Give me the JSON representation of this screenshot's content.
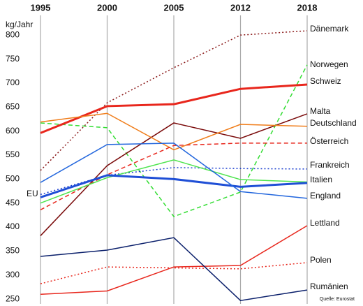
{
  "chart_data": {
    "type": "line",
    "y_label": "kg/Jahr",
    "source": "Quelle: Eurostat",
    "categories": [
      "1995",
      "2000",
      "2005",
      "2012",
      "2018"
    ],
    "ylim": [
      240,
      812
    ],
    "yticks": [
      250,
      300,
      350,
      400,
      450,
      500,
      550,
      600,
      650,
      700,
      750,
      800
    ],
    "grid": true,
    "series": [
      {
        "name": "Dänemark",
        "color": "#8b1a1a",
        "style": "dotted",
        "width": 1.5,
        "values": [
          518,
          659,
          732,
          800,
          809
        ]
      },
      {
        "name": "Norwegen",
        "color": "#33dd33",
        "style": "dashed",
        "width": 1.5,
        "values": [
          617,
          607,
          422,
          473,
          738
        ]
      },
      {
        "name": "Schweiz",
        "color": "#e8261c",
        "style": "solid",
        "width": 3,
        "values": [
          596,
          652,
          656,
          688,
          697
        ]
      },
      {
        "name": "Malta",
        "color": "#7a0a0a",
        "style": "solid",
        "width": 1.5,
        "values": [
          382,
          528,
          617,
          585,
          636
        ]
      },
      {
        "name": "Deutschland",
        "color": "#f07d1a",
        "style": "solid",
        "width": 1.5,
        "values": [
          619,
          637,
          561,
          614,
          610
        ]
      },
      {
        "name": "Österreich",
        "color": "#e8261c",
        "style": "dashed",
        "width": 1.5,
        "values": [
          436,
          509,
          570,
          575,
          575
        ]
      },
      {
        "name": "Frankreich",
        "color": "#1a3fcf",
        "style": "dotted",
        "width": 1.5,
        "values": [
          468,
          508,
          524,
          522,
          521
        ]
      },
      {
        "name": "Italien",
        "color": "#4ee44e",
        "style": "solid",
        "width": 1.5,
        "values": [
          450,
          503,
          540,
          499,
          494
        ]
      },
      {
        "name": "EU",
        "color": "#1f4fd6",
        "style": "solid",
        "width": 3,
        "values": [
          462,
          508,
          500,
          484,
          492
        ]
      },
      {
        "name": "England",
        "color": "#2266dd",
        "style": "solid",
        "width": 1.5,
        "values": [
          493,
          572,
          575,
          474,
          460
        ]
      },
      {
        "name": "Lettland",
        "color": "#e8261c",
        "style": "solid",
        "width": 1.5,
        "values": [
          260,
          267,
          317,
          320,
          403
        ]
      },
      {
        "name": "Polen",
        "color": "#e8261c",
        "style": "dotted",
        "width": 1.5,
        "values": [
          282,
          317,
          315,
          313,
          326
        ]
      },
      {
        "name": "Rumänien",
        "color": "#0a1f6b",
        "style": "solid",
        "width": 1.5,
        "values": [
          339,
          352,
          378,
          247,
          269
        ]
      }
    ]
  }
}
